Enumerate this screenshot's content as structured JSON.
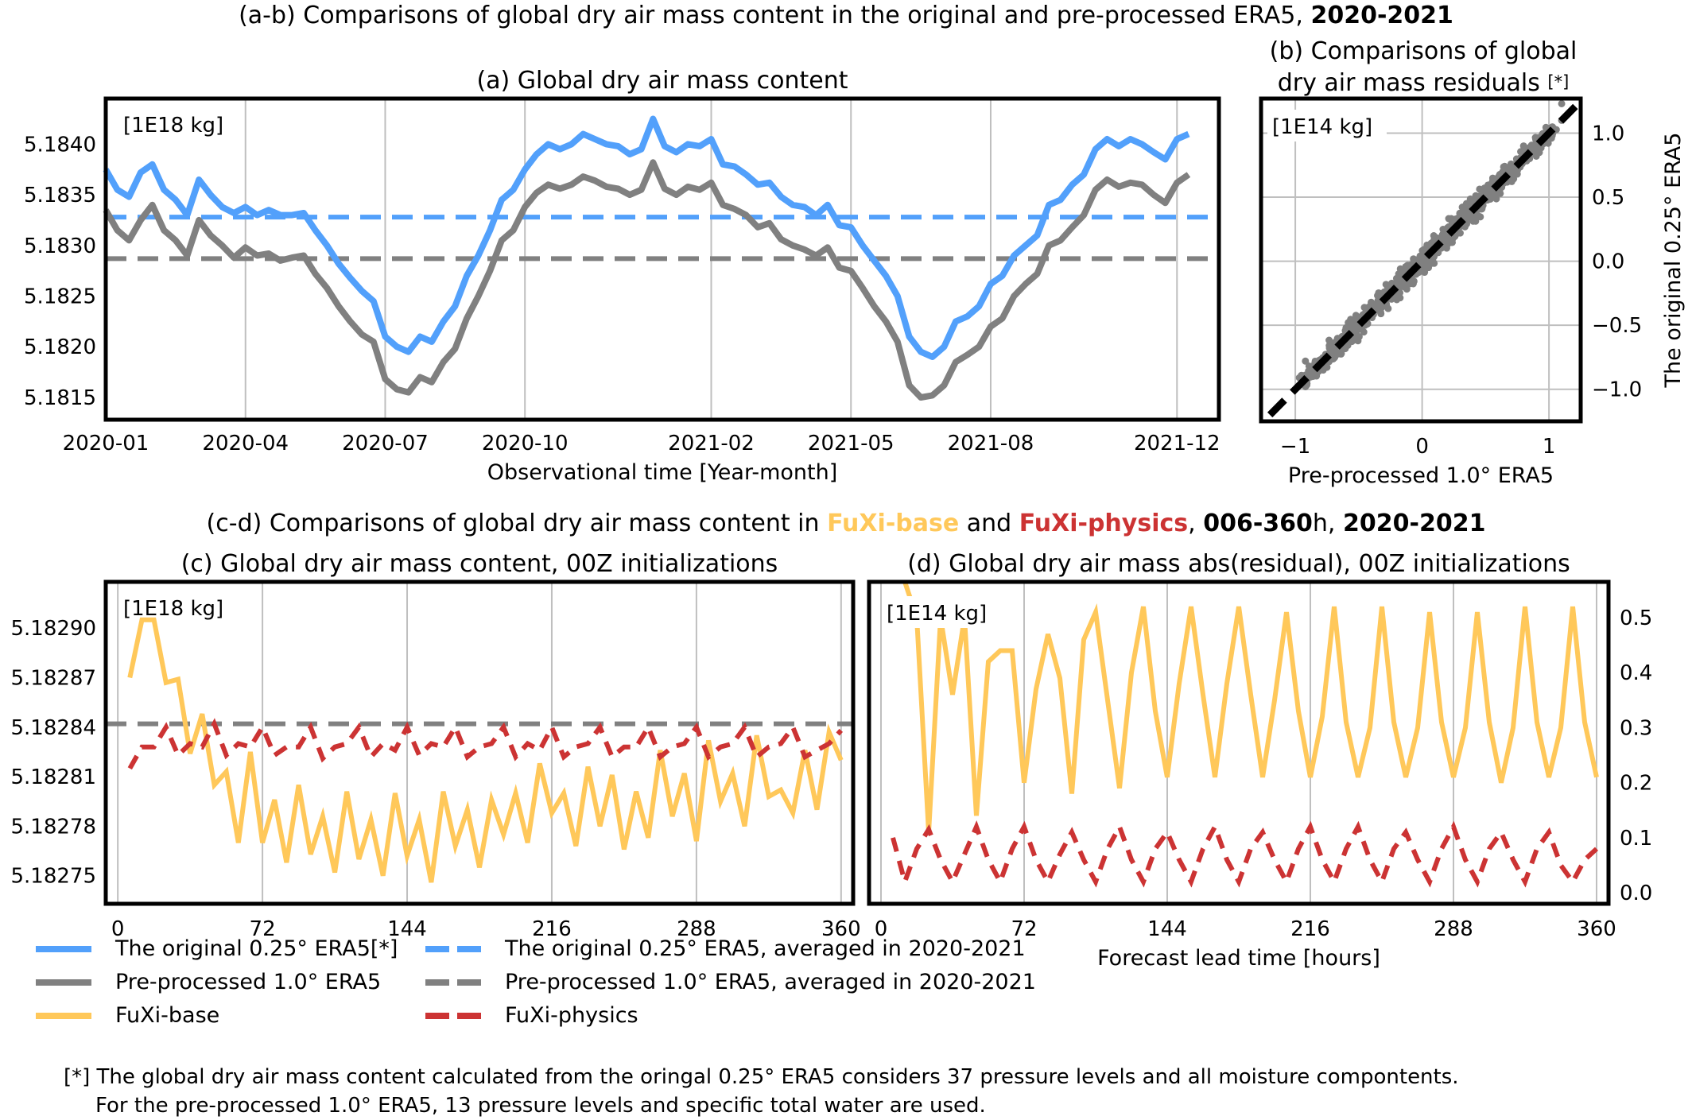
{
  "figure": {
    "top_title": {
      "prefix": "(a-b) Comparisons of global dry air mass content in the original and pre-processed ERA5, ",
      "bold": "2020-2021"
    },
    "bottom_title": {
      "prefix": "(c-d) Comparisons of global dry air mass content in ",
      "fuxi_base": "FuXi-base",
      "and": " and ",
      "fuxi_physics": "FuXi-physics",
      "comma1": ", ",
      "hours_bold": "006-360",
      "hours_suffix": "h, ",
      "years_bold": "2020-2021"
    },
    "footnote": {
      "line1": "[*] The global dry air mass content calculated from the oringal 0.25$ ERA5 considers 37 pressure levels and all moisture compontents.",
      "line2": "For the pre-processed 1.0$ ERA5, 13 pressure levels and specific total water are used."
    },
    "colors": {
      "blue": "#52a0fb",
      "gray": "#808080",
      "yellow": "#ffc85a",
      "red": "#cc3333",
      "black": "#000000",
      "grid": "#bfbfbf"
    }
  },
  "legend": {
    "items": [
      {
        "label": "The original 0.25° ERA5[*]",
        "style": "solid",
        "color": "#52a0fb"
      },
      {
        "label": "Pre-processed 1.0° ERA5",
        "style": "solid",
        "color": "#808080"
      },
      {
        "label": "FuXi-base",
        "style": "solid",
        "color": "#ffc85a"
      },
      {
        "label": "The original 0.25° ERA5, averaged in 2020-2021",
        "style": "dashed",
        "color": "#52a0fb"
      },
      {
        "label": "Pre-processed 1.0° ERA5, averaged in 2020-2021",
        "style": "dashed",
        "color": "#808080"
      },
      {
        "label": "FuXi-physics",
        "style": "dashed",
        "color": "#cc3333"
      }
    ]
  },
  "chart_data": [
    {
      "id": "a",
      "type": "line",
      "title": "(a) Global dry air mass content",
      "unit_label": "[1E18 kg]",
      "xlabel": "Observational time [Year-month]",
      "ylabel": "",
      "x_tick_labels": [
        "2020-01",
        "2020-04",
        "2020-07",
        "2020-10",
        "2021-02",
        "2021-05",
        "2021-08",
        "2021-12"
      ],
      "x_tick_positions_months": [
        0,
        3,
        6,
        9,
        13,
        16,
        19,
        23
      ],
      "xlim_months": [
        0,
        23.9
      ],
      "yticks": [
        "5.1815",
        "5.1820",
        "5.1825",
        "5.1830",
        "5.1835",
        "5.1840"
      ],
      "ylim": [
        5.18128,
        5.18445
      ],
      "grid": "x",
      "x_months": [
        0,
        0.25,
        0.5,
        0.75,
        1,
        1.25,
        1.5,
        1.75,
        2,
        2.25,
        2.5,
        2.75,
        3,
        3.25,
        3.5,
        3.75,
        4,
        4.25,
        4.5,
        4.75,
        5,
        5.25,
        5.5,
        5.75,
        6,
        6.25,
        6.5,
        6.75,
        7,
        7.25,
        7.5,
        7.75,
        8,
        8.25,
        8.5,
        8.75,
        9,
        9.25,
        9.5,
        9.75,
        10,
        10.25,
        10.5,
        10.75,
        11,
        11.25,
        11.5,
        11.75,
        12,
        12.25,
        12.5,
        12.75,
        13,
        13.25,
        13.5,
        13.75,
        14,
        14.25,
        14.5,
        14.75,
        15,
        15.25,
        15.5,
        15.75,
        16,
        16.25,
        16.5,
        16.75,
        17,
        17.25,
        17.5,
        17.75,
        18,
        18.25,
        18.5,
        18.75,
        19,
        19.25,
        19.5,
        19.75,
        20,
        20.25,
        20.5,
        20.75,
        21,
        21.25,
        21.5,
        21.75,
        22,
        22.25,
        22.5,
        22.75,
        23,
        23.25,
        23.5,
        23.75
      ],
      "series": [
        {
          "name": "The original 0.25° ERA5",
          "color": "#52a0fb",
          "style": "solid",
          "values": [
            5.18375,
            5.18355,
            5.18348,
            5.18372,
            5.1838,
            5.18355,
            5.18345,
            5.1833,
            5.18365,
            5.1835,
            5.18338,
            5.18332,
            5.18338,
            5.1833,
            5.18335,
            5.1833,
            5.1833,
            5.18332,
            5.18315,
            5.183,
            5.18282,
            5.18268,
            5.18255,
            5.18245,
            5.1821,
            5.182,
            5.18195,
            5.1821,
            5.18205,
            5.18225,
            5.1824,
            5.1827,
            5.1829,
            5.18315,
            5.18345,
            5.18355,
            5.18375,
            5.1839,
            5.184,
            5.18395,
            5.184,
            5.1841,
            5.18405,
            5.184,
            5.18398,
            5.1839,
            5.18395,
            5.18425,
            5.18398,
            5.18392,
            5.184,
            5.18398,
            5.18405,
            5.1838,
            5.18378,
            5.1837,
            5.1836,
            5.18362,
            5.18348,
            5.1834,
            5.18338,
            5.1833,
            5.1834,
            5.1832,
            5.18318,
            5.183,
            5.18285,
            5.1827,
            5.1825,
            5.1821,
            5.18195,
            5.1819,
            5.182,
            5.18225,
            5.1823,
            5.1824,
            5.18262,
            5.1827,
            5.1829,
            5.183,
            5.1831,
            5.1834,
            5.18345,
            5.1836,
            5.1837,
            5.18395,
            5.18405,
            5.18398,
            5.18405,
            5.184,
            5.18392,
            5.18385,
            5.18405,
            5.1841
          ]
        },
        {
          "name": "Pre-processed 1.0° ERA5",
          "color": "#808080",
          "style": "solid",
          "values": [
            5.18335,
            5.18315,
            5.18305,
            5.18325,
            5.1834,
            5.18315,
            5.18305,
            5.1829,
            5.18325,
            5.1831,
            5.183,
            5.18288,
            5.18298,
            5.1829,
            5.18292,
            5.18285,
            5.18288,
            5.1829,
            5.18272,
            5.18258,
            5.1824,
            5.18225,
            5.18212,
            5.18205,
            5.18168,
            5.18158,
            5.18155,
            5.1817,
            5.18165,
            5.18185,
            5.18198,
            5.18228,
            5.1825,
            5.18275,
            5.18305,
            5.18315,
            5.18338,
            5.18352,
            5.1836,
            5.18356,
            5.1836,
            5.18368,
            5.18364,
            5.18358,
            5.18356,
            5.1835,
            5.18355,
            5.18382,
            5.18356,
            5.1835,
            5.18358,
            5.18355,
            5.18362,
            5.1834,
            5.18336,
            5.1833,
            5.18318,
            5.18322,
            5.18306,
            5.183,
            5.18296,
            5.1829,
            5.18298,
            5.18278,
            5.18275,
            5.18258,
            5.1824,
            5.18225,
            5.18205,
            5.18162,
            5.1815,
            5.18152,
            5.18162,
            5.18185,
            5.18192,
            5.182,
            5.1822,
            5.18228,
            5.1825,
            5.18262,
            5.18272,
            5.183,
            5.18305,
            5.18318,
            5.1833,
            5.18355,
            5.18365,
            5.18358,
            5.18362,
            5.1836,
            5.1835,
            5.18342,
            5.18362,
            5.1837
          ]
        }
      ],
      "hlines": [
        {
          "name": "The original 0.25° ERA5, averaged in 2020-2021",
          "value": 5.18328,
          "color": "#52a0fb",
          "style": "dashed"
        },
        {
          "name": "Pre-processed 1.0° ERA5, averaged in 2020-2021",
          "value": 5.18287,
          "color": "#808080",
          "style": "dashed"
        }
      ]
    },
    {
      "id": "b",
      "type": "scatter",
      "title_line1": "(b) Comparisons of global",
      "title_line2": "dry air mass residuals",
      "title_mark": "[*]",
      "unit_label": "[1E14 kg]",
      "xlabel": "Pre-processed 1.0° ERA5",
      "ylabel": "The original 0.25° ERA5",
      "x_tick_labels": [
        "−1",
        "0",
        "1"
      ],
      "x_ticks": [
        -1,
        0,
        1
      ],
      "y_tick_labels": [
        "−1.0",
        "−0.5",
        "0.0",
        "0.5",
        "1.0"
      ],
      "y_ticks": [
        -1.0,
        -0.5,
        0.0,
        0.5,
        1.0
      ],
      "xlim": [
        -1.27,
        1.25
      ],
      "ylim": [
        -1.25,
        1.27
      ],
      "grid": "both",
      "point_color": "#808080",
      "reference_line": {
        "slope": 1,
        "intercept": 0,
        "color": "#000000",
        "style": "dashed"
      },
      "points_summary": "dense cloud along y=x from about -0.95 to 1.1",
      "sample_points": [
        [
          -0.92,
          -0.98
        ],
        [
          -0.92,
          -0.78
        ],
        [
          -0.78,
          -0.85
        ],
        [
          -0.7,
          -0.72
        ],
        [
          -0.62,
          -0.62
        ],
        [
          -0.55,
          -0.58
        ],
        [
          -0.5,
          -0.45
        ],
        [
          -0.45,
          -0.5
        ],
        [
          -0.4,
          -0.38
        ],
        [
          -0.3,
          -0.32
        ],
        [
          -0.25,
          -0.2
        ],
        [
          -0.15,
          -0.18
        ],
        [
          -0.1,
          -0.05
        ],
        [
          0.0,
          0.02
        ],
        [
          0.05,
          -0.05
        ],
        [
          0.1,
          0.12
        ],
        [
          0.2,
          0.15
        ],
        [
          0.25,
          0.3
        ],
        [
          0.3,
          0.22
        ],
        [
          0.4,
          0.42
        ],
        [
          0.45,
          0.35
        ],
        [
          0.5,
          0.55
        ],
        [
          0.6,
          0.58
        ],
        [
          0.7,
          0.72
        ],
        [
          0.75,
          0.68
        ],
        [
          0.8,
          0.9
        ],
        [
          0.9,
          0.95
        ],
        [
          0.98,
          1.02
        ],
        [
          1.1,
          1.1
        ],
        [
          1.1,
          1.23
        ],
        [
          0.9,
          0.82
        ],
        [
          0.62,
          0.68
        ],
        [
          0.35,
          0.45
        ],
        [
          -0.2,
          -0.3
        ],
        [
          -0.6,
          -0.52
        ]
      ]
    },
    {
      "id": "c",
      "type": "line",
      "title": "(c) Global dry air mass content, 00Z initializations",
      "unit_label": "[1E18 kg]",
      "xlabel": "",
      "x_ticks": [
        0,
        72,
        144,
        216,
        288,
        360
      ],
      "xlim": [
        -6,
        366
      ],
      "yticks": [
        "5.18275",
        "5.18278",
        "5.18281",
        "5.18284",
        "5.18287",
        "5.18290"
      ],
      "ylim": [
        5.182733,
        5.182928
      ],
      "grid": "x",
      "x_hours": [
        6,
        12,
        18,
        24,
        30,
        36,
        42,
        48,
        54,
        60,
        66,
        72,
        78,
        84,
        90,
        96,
        102,
        108,
        114,
        120,
        126,
        132,
        138,
        144,
        150,
        156,
        162,
        168,
        174,
        180,
        186,
        192,
        198,
        204,
        210,
        216,
        222,
        228,
        234,
        240,
        246,
        252,
        258,
        264,
        270,
        276,
        282,
        288,
        294,
        300,
        306,
        312,
        318,
        324,
        330,
        336,
        342,
        348,
        354,
        360
      ],
      "series": [
        {
          "name": "FuXi-base",
          "color": "#ffc85a",
          "style": "solid",
          "values": [
            5.18287,
            5.182905,
            5.182905,
            5.182867,
            5.182869,
            5.182824,
            5.182848,
            5.182805,
            5.182813,
            5.18277,
            5.182825,
            5.18277,
            5.182796,
            5.182758,
            5.182805,
            5.182763,
            5.182786,
            5.182752,
            5.182801,
            5.18276,
            5.182784,
            5.18275,
            5.1828,
            5.182762,
            5.182784,
            5.182746,
            5.182801,
            5.182768,
            5.18279,
            5.182755,
            5.182796,
            5.182775,
            5.1828,
            5.18277,
            5.182818,
            5.182788,
            5.1828,
            5.182768,
            5.182816,
            5.18278,
            5.182811,
            5.182766,
            5.182801,
            5.182773,
            5.182826,
            5.182786,
            5.182812,
            5.182771,
            5.182832,
            5.182795,
            5.182812,
            5.18278,
            5.182835,
            5.182798,
            5.182802,
            5.182788,
            5.182826,
            5.18279,
            5.182837,
            5.18282
          ]
        },
        {
          "name": "FuXi-physics",
          "color": "#cc3333",
          "style": "dashed",
          "values": [
            5.182815,
            5.182828,
            5.182828,
            5.18284,
            5.182823,
            5.18283,
            5.182828,
            5.182842,
            5.182823,
            5.18283,
            5.182828,
            5.18284,
            5.182823,
            5.182828,
            5.182828,
            5.18284,
            5.182821,
            5.182828,
            5.18283,
            5.18284,
            5.182822,
            5.18283,
            5.182826,
            5.18284,
            5.182823,
            5.18283,
            5.182828,
            5.18284,
            5.182822,
            5.182828,
            5.18283,
            5.18284,
            5.182822,
            5.18283,
            5.182826,
            5.18284,
            5.182822,
            5.182828,
            5.18283,
            5.18284,
            5.182822,
            5.182828,
            5.182828,
            5.18284,
            5.182822,
            5.182828,
            5.18283,
            5.18284,
            5.182822,
            5.182828,
            5.18283,
            5.18284,
            5.182822,
            5.182828,
            5.18283,
            5.18284,
            5.182822,
            5.182826,
            5.18283,
            5.182838
          ]
        }
      ],
      "hlines": [
        {
          "name": "Pre-processed 1.0° ERA5, averaged in 2020-2021",
          "value": 5.182842,
          "color": "#808080",
          "style": "dashed"
        }
      ]
    },
    {
      "id": "d",
      "type": "line",
      "title": "(d) Global dry air mass abs(residual), 00Z initializations",
      "unit_label": "[1E14 kg]",
      "xlabel": "Forecast lead time [hours]",
      "x_ticks": [
        0,
        72,
        144,
        216,
        288,
        360
      ],
      "xlim": [
        -6,
        366
      ],
      "yticks": [
        "0.0",
        "0.1",
        "0.2",
        "0.3",
        "0.4",
        "0.5"
      ],
      "ylim": [
        -0.02,
        0.565
      ],
      "grid": "x",
      "x_hours": [
        6,
        12,
        18,
        24,
        30,
        36,
        42,
        48,
        54,
        60,
        66,
        72,
        78,
        84,
        90,
        96,
        102,
        108,
        114,
        120,
        126,
        132,
        138,
        144,
        150,
        156,
        162,
        168,
        174,
        180,
        186,
        192,
        198,
        204,
        210,
        216,
        222,
        228,
        234,
        240,
        246,
        252,
        258,
        264,
        270,
        276,
        282,
        288,
        294,
        300,
        306,
        312,
        318,
        324,
        330,
        336,
        342,
        348,
        354,
        360
      ],
      "series": [
        {
          "name": "FuXi-base",
          "color": "#ffc85a",
          "style": "solid",
          "values": [
            null,
            0.565,
            0.5,
            0.11,
            0.5,
            0.36,
            0.5,
            0.14,
            0.42,
            0.44,
            0.44,
            0.2,
            0.37,
            0.47,
            0.39,
            0.18,
            0.46,
            0.51,
            0.35,
            0.19,
            0.4,
            0.52,
            0.33,
            0.21,
            0.38,
            0.52,
            0.36,
            0.21,
            0.38,
            0.52,
            0.36,
            0.21,
            0.35,
            0.51,
            0.33,
            0.21,
            0.32,
            0.52,
            0.31,
            0.21,
            0.3,
            0.52,
            0.31,
            0.21,
            0.3,
            0.51,
            0.31,
            0.21,
            0.3,
            0.51,
            0.31,
            0.2,
            0.3,
            0.52,
            0.31,
            0.21,
            0.3,
            0.52,
            0.31,
            0.21
          ]
        },
        {
          "name": "FuXi-physics",
          "color": "#cc3333",
          "style": "dashed",
          "values": [
            0.1,
            0.02,
            0.08,
            0.115,
            0.06,
            0.02,
            0.07,
            0.12,
            0.06,
            0.02,
            0.08,
            0.12,
            0.06,
            0.02,
            0.07,
            0.11,
            0.06,
            0.02,
            0.08,
            0.12,
            0.06,
            0.02,
            0.08,
            0.11,
            0.06,
            0.02,
            0.08,
            0.12,
            0.06,
            0.02,
            0.08,
            0.11,
            0.06,
            0.02,
            0.08,
            0.12,
            0.06,
            0.02,
            0.08,
            0.12,
            0.06,
            0.02,
            0.08,
            0.11,
            0.06,
            0.02,
            0.08,
            0.12,
            0.06,
            0.02,
            0.08,
            0.11,
            0.06,
            0.02,
            0.08,
            0.11,
            0.05,
            0.02,
            0.06,
            0.08
          ]
        }
      ]
    }
  ]
}
